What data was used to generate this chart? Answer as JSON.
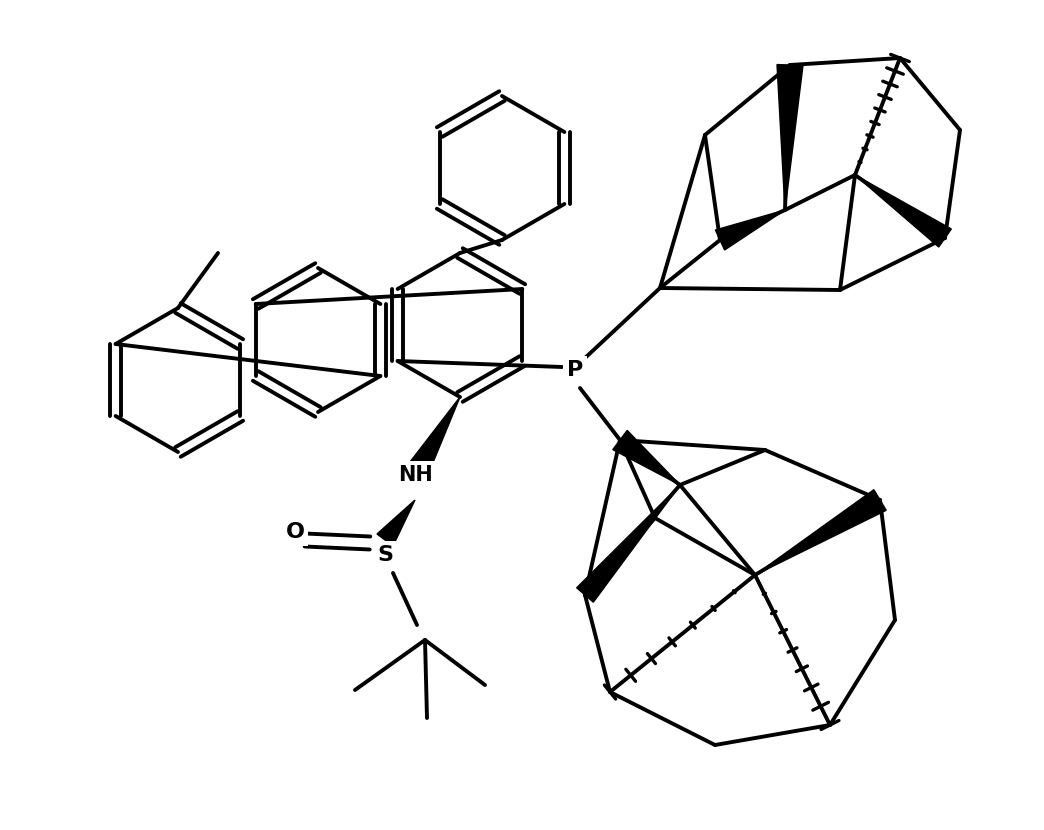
{
  "bg_color": "#ffffff",
  "line_color": "#000000",
  "lw": 2.8,
  "figsize": [
    10.44,
    8.3
  ],
  "dpi": 100,
  "xlim": [
    0,
    10.44
  ],
  "ylim": [
    0,
    8.3
  ]
}
